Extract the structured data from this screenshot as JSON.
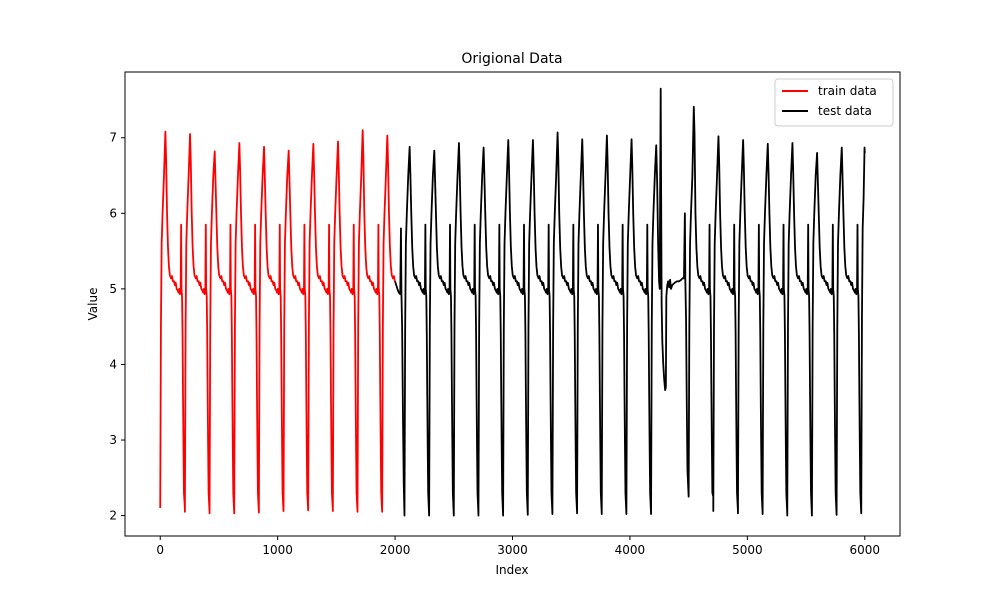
{
  "chart_data": {
    "type": "line",
    "title": "Origional Data",
    "xlabel": "Index",
    "ylabel": "Value",
    "xlim": [
      -300,
      6300
    ],
    "ylim": [
      1.73,
      7.87
    ],
    "xticks": [
      0,
      1000,
      2000,
      3000,
      4000,
      5000,
      6000
    ],
    "yticks": [
      2,
      3,
      4,
      5,
      6,
      7
    ],
    "legend_position": "top-right",
    "grid": false,
    "series": [
      {
        "name": "train data",
        "color": "#ff0000",
        "cycle_starts": [
          0,
          210,
          420,
          630,
          840,
          1050,
          1260,
          1470,
          1680,
          1890
        ],
        "peaks": [
          7.08,
          7.05,
          6.82,
          6.93,
          6.88,
          6.83,
          6.92,
          6.95,
          7.1,
          7.03
        ],
        "troughs": [
          2.1,
          2.05,
          2.03,
          2.04,
          2.06,
          2.07,
          2.08,
          2.06,
          2.05,
          2.07
        ],
        "x_end": 2000
      },
      {
        "name": "test data",
        "color": "#000000",
        "cycle_starts": [
          2080,
          2290,
          2500,
          2710,
          2920,
          3130,
          3340,
          3550,
          3760,
          3970,
          4180,
          4500,
          4710,
          4920,
          5130,
          5340,
          5550,
          5760,
          5970
        ],
        "peaks": [
          6.88,
          6.83,
          6.93,
          6.87,
          6.97,
          6.97,
          7.07,
          6.98,
          7.03,
          6.98,
          6.9,
          7.41,
          7.02,
          6.97,
          6.92,
          6.93,
          6.8,
          6.87,
          6.87
        ],
        "troughs": [
          2.0,
          2.0,
          2.01,
          2.0,
          2.01,
          2.02,
          2.04,
          2.03,
          2.02,
          2.02,
          2.05,
          2.25,
          2.06,
          2.03,
          2.02,
          2.0,
          2.01,
          2.03,
          2.04
        ],
        "x_start": 2000,
        "x_end": 6000
      }
    ]
  }
}
